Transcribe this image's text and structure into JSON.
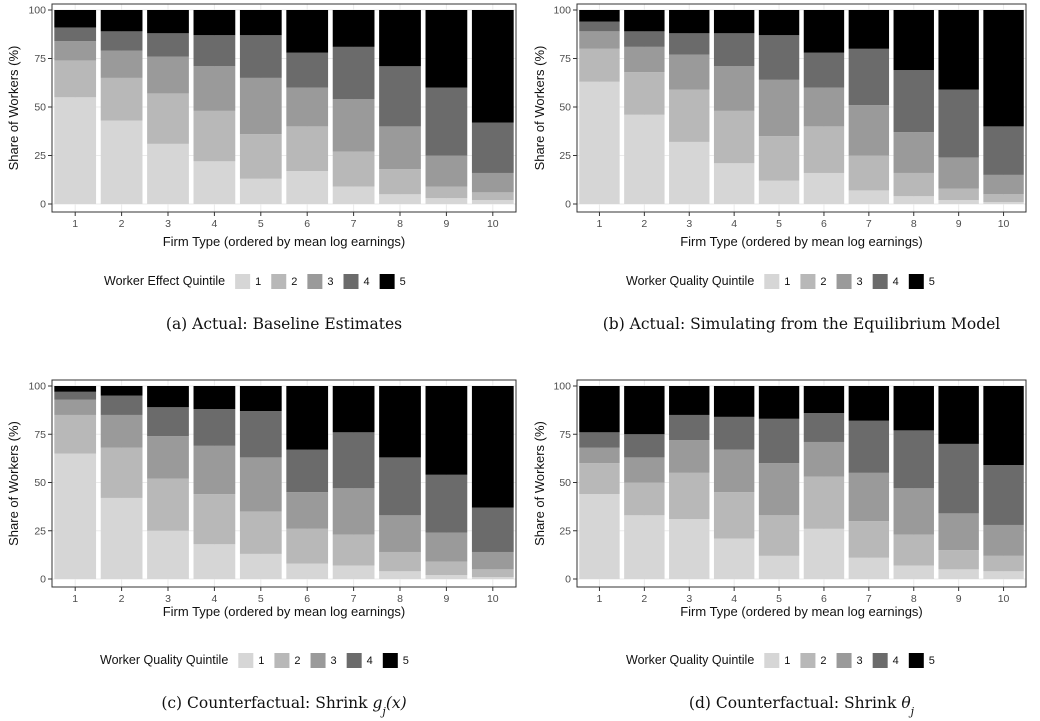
{
  "palette": [
    "#d6d6d6",
    "#b8b8b8",
    "#9a9a9a",
    "#6b6b6b",
    "#000000"
  ],
  "chart_data": [
    {
      "type": "bar",
      "stacked": true,
      "caption": "(a) Actual: Baseline Estimates",
      "xlabel": "Firm Type (ordered by mean log earnings)",
      "ylabel": "Share of Workers (%)",
      "ylim": [
        0,
        100
      ],
      "yticks": [
        "0",
        "25",
        "50",
        "75",
        "100"
      ],
      "categories": [
        "1",
        "2",
        "3",
        "4",
        "5",
        "6",
        "7",
        "8",
        "9",
        "10"
      ],
      "legend_title": "Worker Effect Quintile",
      "legend_labels": [
        "1",
        "2",
        "3",
        "4",
        "5"
      ],
      "series": [
        {
          "name": "1",
          "values": [
            55,
            43,
            31,
            22,
            13,
            17,
            9,
            5,
            3,
            2
          ]
        },
        {
          "name": "2",
          "values": [
            19,
            22,
            26,
            26,
            23,
            23,
            18,
            13,
            6,
            4
          ]
        },
        {
          "name": "3",
          "values": [
            10,
            14,
            19,
            23,
            29,
            20,
            27,
            22,
            16,
            10
          ]
        },
        {
          "name": "4",
          "values": [
            7,
            10,
            12,
            16,
            22,
            18,
            27,
            31,
            35,
            26
          ]
        },
        {
          "name": "5",
          "values": [
            9,
            11,
            12,
            13,
            13,
            22,
            19,
            29,
            40,
            58
          ]
        }
      ]
    },
    {
      "type": "bar",
      "stacked": true,
      "caption": "(b) Actual: Simulating from the Equilibrium Model",
      "xlabel": "Firm Type (ordered by mean log earnings)",
      "ylabel": "Share of Workers (%)",
      "ylim": [
        0,
        100
      ],
      "yticks": [
        "0",
        "25",
        "50",
        "75",
        "100"
      ],
      "categories": [
        "1",
        "2",
        "3",
        "4",
        "5",
        "6",
        "7",
        "8",
        "9",
        "10"
      ],
      "legend_title": "Worker Quality Quintile",
      "legend_labels": [
        "1",
        "2",
        "3",
        "4",
        "5"
      ],
      "series": [
        {
          "name": "1",
          "values": [
            63,
            46,
            32,
            21,
            12,
            16,
            7,
            4,
            2,
            1
          ]
        },
        {
          "name": "2",
          "values": [
            17,
            22,
            27,
            27,
            23,
            24,
            18,
            12,
            6,
            4
          ]
        },
        {
          "name": "3",
          "values": [
            9,
            13,
            18,
            23,
            29,
            20,
            26,
            21,
            16,
            10
          ]
        },
        {
          "name": "4",
          "values": [
            5,
            8,
            11,
            17,
            23,
            18,
            29,
            32,
            35,
            25
          ]
        },
        {
          "name": "5",
          "values": [
            6,
            11,
            12,
            12,
            13,
            22,
            20,
            31,
            41,
            60
          ]
        }
      ]
    },
    {
      "type": "bar",
      "stacked": true,
      "caption": "(c) Counterfactual: Shrink ",
      "caption_math": "g_j(x)",
      "xlabel": "Firm Type (ordered by  mean log earnings)",
      "ylabel": "Share of Workers (%)",
      "ylim": [
        0,
        100
      ],
      "yticks": [
        "0",
        "25",
        "50",
        "75",
        "100"
      ],
      "categories": [
        "1",
        "2",
        "3",
        "4",
        "5",
        "6",
        "7",
        "8",
        "9",
        "10"
      ],
      "legend_title": "Worker Quality Quintile",
      "legend_labels": [
        "1",
        "2",
        "3",
        "4",
        "5"
      ],
      "series": [
        {
          "name": "1",
          "values": [
            65,
            42,
            25,
            18,
            13,
            8,
            7,
            4,
            2,
            1
          ]
        },
        {
          "name": "2",
          "values": [
            20,
            26,
            27,
            26,
            22,
            18,
            16,
            10,
            7,
            4
          ]
        },
        {
          "name": "3",
          "values": [
            8,
            17,
            22,
            25,
            28,
            19,
            24,
            19,
            15,
            9
          ]
        },
        {
          "name": "4",
          "values": [
            4,
            10,
            15,
            19,
            24,
            22,
            29,
            30,
            30,
            23
          ]
        },
        {
          "name": "5",
          "values": [
            3,
            5,
            11,
            12,
            13,
            33,
            24,
            37,
            46,
            63
          ]
        }
      ]
    },
    {
      "type": "bar",
      "stacked": true,
      "caption": "(d) Counterfactual: Shrink ",
      "caption_math": "θ_j",
      "xlabel": "Firm Type (ordered by mean log earnings)",
      "ylabel": "Share of Workers (%)",
      "ylim": [
        0,
        100
      ],
      "yticks": [
        "0",
        "25",
        "50",
        "75",
        "100"
      ],
      "categories": [
        "1",
        "2",
        "3",
        "4",
        "5",
        "6",
        "7",
        "8",
        "9",
        "10"
      ],
      "legend_title": "Worker Quality Quintile",
      "legend_labels": [
        "1",
        "2",
        "3",
        "4",
        "5"
      ],
      "series": [
        {
          "name": "1",
          "values": [
            44,
            33,
            31,
            21,
            12,
            26,
            11,
            7,
            5,
            4
          ]
        },
        {
          "name": "2",
          "values": [
            16,
            17,
            24,
            24,
            21,
            27,
            19,
            16,
            10,
            8
          ]
        },
        {
          "name": "3",
          "values": [
            8,
            13,
            17,
            22,
            27,
            18,
            25,
            24,
            19,
            16
          ]
        },
        {
          "name": "4",
          "values": [
            8,
            12,
            13,
            17,
            23,
            15,
            27,
            30,
            36,
            31
          ]
        },
        {
          "name": "5",
          "values": [
            24,
            25,
            15,
            16,
            17,
            14,
            18,
            23,
            30,
            41
          ]
        }
      ]
    }
  ]
}
